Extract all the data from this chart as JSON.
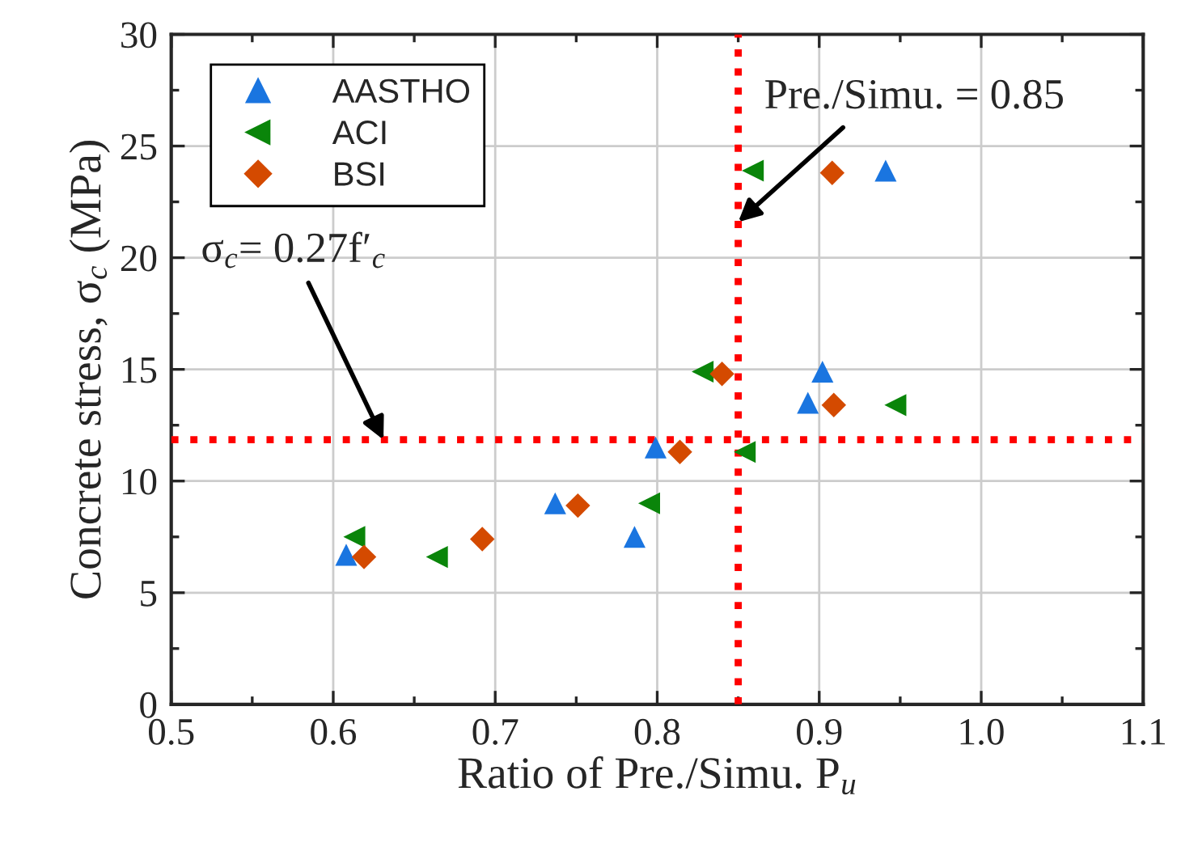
{
  "chart_data": {
    "type": "scatter",
    "xlabel": "Ratio of Pre./Simu. P$_{u}$",
    "ylabel": "Concrete stress, σ$_{c}$ (MPa)",
    "xlim": [
      0.5,
      1.1
    ],
    "xticks": [
      0.5,
      0.6,
      0.7,
      0.8,
      0.9,
      {
        "value": 1.0,
        "label": "1.0"
      },
      1.1
    ],
    "ylim": [
      0,
      30
    ],
    "yticks": [
      0,
      5,
      10,
      15,
      20,
      25,
      30
    ],
    "grid": true,
    "legend": "top left",
    "series": [
      {
        "name": "AASTHO",
        "color": "#1a75e0",
        "marker": "triangle",
        "x": [
          0.608,
          0.737,
          0.786,
          0.799,
          0.893,
          0.902,
          0.941
        ],
        "values": [
          6.7,
          9.0,
          7.5,
          11.5,
          13.5,
          14.9,
          23.9
        ]
      },
      {
        "name": "ACI",
        "color": "#0a850a",
        "marker": "triangle_left",
        "x": [
          0.613,
          0.664,
          0.795,
          0.828,
          0.854,
          0.859,
          0.947
        ],
        "values": [
          7.5,
          6.6,
          9.0,
          14.9,
          11.3,
          23.9,
          13.4
        ]
      },
      {
        "name": "BSI",
        "color": "#d44a00",
        "marker": "diamond",
        "x": [
          0.619,
          0.692,
          0.751,
          0.814,
          0.84,
          0.908,
          0.909
        ],
        "values": [
          6.6,
          7.4,
          8.9,
          11.3,
          14.8,
          23.8,
          13.4
        ]
      }
    ],
    "ref_lines": [
      {
        "axis": "y",
        "value": 11.85,
        "color": "#ff0000",
        "line_style": "dotted"
      },
      {
        "axis": "x",
        "value": 0.85,
        "color": "#ff0000",
        "line_style": "dotted",
        "label": "Pre./Simu. = 0.85"
      }
    ],
    "annotations": [
      {
        "text": "σ$_{c}$= 0.27f′$_{c}$",
        "x": 0.631,
        "y": 11.85
      }
    ]
  }
}
